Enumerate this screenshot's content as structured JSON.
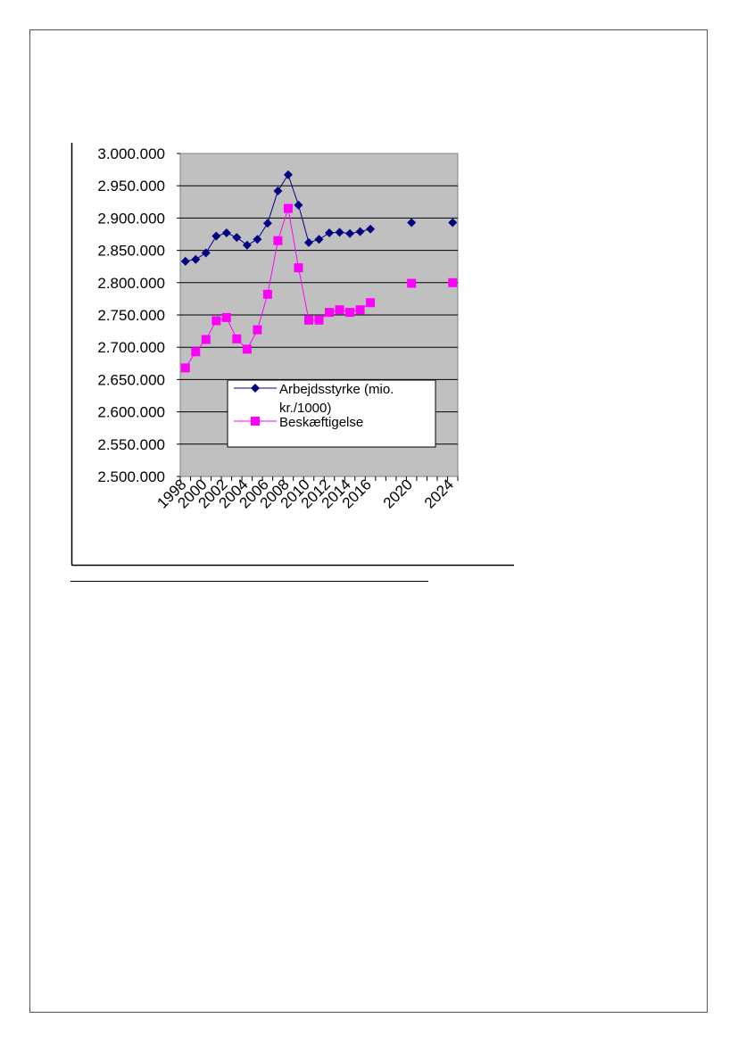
{
  "colors": {
    "plot_background": "#c0c0c0",
    "gridline": "#000000",
    "series_1": "#000080",
    "series_2": "#ff00ff"
  },
  "chart_data": {
    "type": "line",
    "title": "",
    "xlabel": "",
    "ylabel": "",
    "ylim": [
      2500000,
      3000000
    ],
    "y_ticks": [
      2500000,
      2550000,
      2600000,
      2650000,
      2700000,
      2750000,
      2800000,
      2850000,
      2900000,
      2950000,
      3000000
    ],
    "y_tick_labels": [
      "2.500.000",
      "2.550.000",
      "2.600.000",
      "2.650.000",
      "2.700.000",
      "2.750.000",
      "2.800.000",
      "2.850.000",
      "2.900.000",
      "2.950.000",
      "3.000.000"
    ],
    "x": [
      1998,
      1999,
      2000,
      2001,
      2002,
      2003,
      2004,
      2005,
      2006,
      2007,
      2008,
      2009,
      2010,
      2011,
      2012,
      2013,
      2014,
      2015,
      2016,
      2017,
      2018,
      2019,
      2020,
      2021,
      2022,
      2023,
      2024
    ],
    "x_tick_labels": [
      "1998",
      "2000",
      "2002",
      "2004",
      "2006",
      "2008",
      "2010",
      "2012",
      "2014",
      "2016",
      "2020",
      "2024"
    ],
    "grid": true,
    "legend_position": "lower-middle",
    "series": [
      {
        "name": "Arbejdsstyrke (mio. kr./1000)",
        "marker": "diamond",
        "values": [
          2833000,
          2836000,
          2846000,
          2872000,
          2877000,
          2870000,
          2858000,
          2867000,
          2892000,
          2942000,
          2967000,
          2920000,
          2862000,
          2867000,
          2877000,
          2878000,
          2876000,
          2879000,
          2883000,
          null,
          null,
          null,
          2893000,
          null,
          null,
          null,
          2893000
        ]
      },
      {
        "name": "Beskæftigelse",
        "marker": "square",
        "values": [
          2668000,
          2693000,
          2712000,
          2741000,
          2746000,
          2713000,
          2697000,
          2727000,
          2782000,
          2865000,
          2915000,
          2823000,
          2742000,
          2742000,
          2754000,
          2758000,
          2754000,
          2758000,
          2769000,
          null,
          null,
          null,
          2799000,
          null,
          null,
          null,
          2800000
        ]
      }
    ]
  }
}
